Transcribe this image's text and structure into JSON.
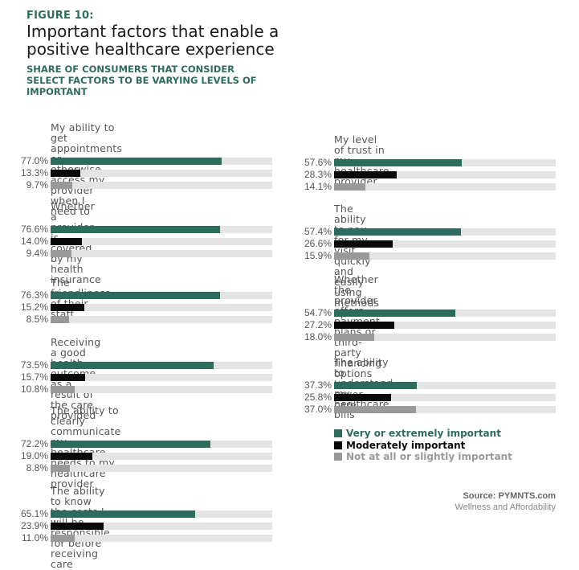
{
  "header": {
    "figure_label": "FIGURE 10:",
    "title": "Important factors that enable a positive healthcare experience",
    "subtitle": "SHARE OF CONSUMERS THAT CONSIDER SELECT FACTORS TO BE VARYING LEVELS OF IMPORTANT"
  },
  "colors": {
    "very": "#2e6b5c",
    "moderate": "#0a0a0a",
    "not": "#999999",
    "track": "#e4e4e4",
    "accent": "#2e6b5c"
  },
  "legend": {
    "very": "Very or extremely important",
    "moderate": "Moderately important",
    "not": "Not at all or slightly important"
  },
  "source": {
    "line1": "Source: PYMNTS.com",
    "line2": "Wellness and Affordability"
  },
  "chart_data": {
    "type": "bar",
    "orientation": "horizontal",
    "title": "Important factors that enable a positive healthcare experience",
    "subtitle": "Share of consumers that consider select factors to be varying levels of important",
    "xlabel": "",
    "ylabel": "",
    "xlim": [
      0,
      100
    ],
    "grid": false,
    "legend_position": "bottom-right",
    "categories": [
      "My ability to get appointments or otherwise access my provider when I need to",
      "Whether a provider is covered by my health insurance",
      "The friendliness of their staff",
      "Receiving a good health outcome as a result of the care provided",
      "The ability to clearly communicate my healthcare needs to my healthcare provider",
      "The ability to know the costs I will be responsible for before receiving care",
      "My level of trust in my healthcare provider",
      "The ability to pay for my visit quickly and easily using methods I prefer",
      "Whether the provider offers payment plans or third-party financing options to cover care",
      "The ability to understand my healthcare bills"
    ],
    "series": [
      {
        "name": "Very or extremely important",
        "color": "#2e6b5c",
        "values": [
          77.0,
          76.6,
          76.3,
          73.5,
          72.2,
          65.1,
          57.6,
          57.4,
          54.7,
          37.3
        ]
      },
      {
        "name": "Moderately important",
        "color": "#0a0a0a",
        "values": [
          13.3,
          14.0,
          15.2,
          15.7,
          19.0,
          23.9,
          28.3,
          26.6,
          27.2,
          25.8
        ]
      },
      {
        "name": "Not at all or slightly important",
        "color": "#999999",
        "values": [
          9.7,
          9.4,
          8.5,
          10.8,
          8.8,
          11.0,
          14.1,
          15.9,
          18.0,
          37.0
        ]
      }
    ]
  },
  "groups": [
    {
      "q1": "My ability to get appointments or",
      "q2": "otherwise access my provider when I",
      "q3": "need to",
      "v": "77.0%",
      "m": "13.3%",
      "n": "9.7%"
    },
    {
      "q1": "Whether a provider is covered by my",
      "q2": "health insurance",
      "q3": "",
      "v": "76.6%",
      "m": "14.0%",
      "n": "9.4%"
    },
    {
      "q1": "The friendliness of their staff",
      "q2": "",
      "q3": "",
      "v": "76.3%",
      "m": "15.2%",
      "n": "8.5%"
    },
    {
      "q1": "Receiving a good health outcome as a",
      "q2": "result of the care provided",
      "q3": "",
      "v": "73.5%",
      "m": "15.7%",
      "n": "10.8%"
    },
    {
      "q1": "The ability to clearly communicate my",
      "q2": "healthcare needs to my healthcare",
      "q3": "provider",
      "v": "72.2%",
      "m": "19.0%",
      "n": "8.8%"
    },
    {
      "q1": "The ability to know the costs I will be",
      "q2": "responsible for before receiving care",
      "q3": "",
      "v": "65.1%",
      "m": "23.9%",
      "n": "11.0%"
    },
    {
      "q1": "My level of trust in my healthcare",
      "q2": "provider",
      "q3": "",
      "v": "57.6%",
      "m": "28.3%",
      "n": "14.1%"
    },
    {
      "q1": "The ability to pay for my visit quickly and",
      "q2": "easily using methods I prefer",
      "q3": "",
      "v": "57.4%",
      "m": "26.6%",
      "n": "15.9%"
    },
    {
      "q1": "Whether the provider offers payment",
      "q2": "plans or third-party financing options to",
      "q3": "cover care",
      "v": "54.7%",
      "m": "27.2%",
      "n": "18.0%"
    },
    {
      "q1": "The ability to understand my healthcare",
      "q2": "bills",
      "q3": "",
      "v": "37.3%",
      "m": "25.8%",
      "n": "37.0%"
    }
  ]
}
